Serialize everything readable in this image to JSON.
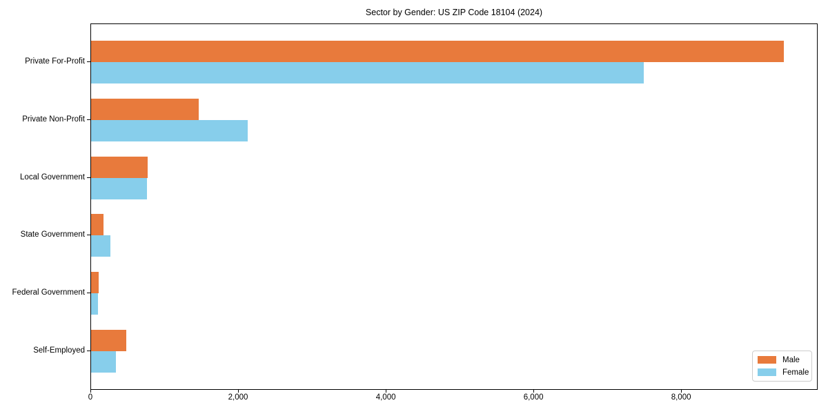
{
  "title": "Sector by Gender: US ZIP Code 18104 (2024)",
  "colors": {
    "male": "#E87A3C",
    "female": "#87CEEB",
    "axis": "#000000",
    "legend_border": "#CCCCCC"
  },
  "legend": {
    "position": "lower right",
    "items": [
      {
        "label": "Male",
        "color": "#E87A3C"
      },
      {
        "label": "Female",
        "color": "#87CEEB"
      }
    ]
  },
  "x_axis": {
    "tick_labels": [
      "0",
      "2,000",
      "4,000",
      "6,000",
      "8,000"
    ],
    "tick_values": [
      0,
      2000,
      4000,
      6000,
      8000
    ]
  },
  "chart_data": {
    "type": "bar",
    "orientation": "horizontal",
    "title": "Sector by Gender: US ZIP Code 18104 (2024)",
    "categories": [
      "Private For-Profit",
      "Private Non-Profit",
      "Local Government",
      "State Government",
      "Federal Government",
      "Self-Employed"
    ],
    "series": [
      {
        "name": "Male",
        "color": "#E87A3C",
        "values": [
          9380,
          1460,
          770,
          170,
          105,
          475
        ]
      },
      {
        "name": "Female",
        "color": "#87CEEB",
        "values": [
          7480,
          2120,
          760,
          265,
          95,
          340
        ]
      }
    ],
    "xlabel": "",
    "ylabel": "",
    "xlim": [
      0,
      9849
    ],
    "grid": false,
    "legend_position": "lower right"
  }
}
